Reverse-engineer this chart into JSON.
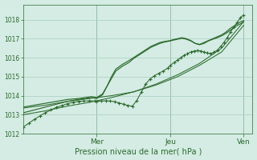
{
  "xlabel": "Pression niveau de la mer( hPa )",
  "bg_color": "#d4ece4",
  "grid_color": "#aacfc0",
  "line_color": "#2d6b2d",
  "ylim": [
    1012,
    1018.8
  ],
  "yticks": [
    1012,
    1013,
    1014,
    1015,
    1016,
    1017,
    1018
  ],
  "xtick_labels": [
    "Mer",
    "Jeu",
    "Ven"
  ],
  "xtick_positions": [
    0.333,
    0.667,
    1.0
  ],
  "vline_positions": [
    0.333,
    0.667,
    1.0
  ],
  "line_straight1_x": [
    0,
    0.1,
    0.2,
    0.3,
    0.4,
    0.5,
    0.6,
    0.7,
    0.8,
    0.9,
    1.0
  ],
  "line_straight1_y": [
    1013.0,
    1013.2,
    1013.45,
    1013.65,
    1013.9,
    1014.2,
    1014.6,
    1015.1,
    1015.7,
    1016.5,
    1017.9
  ],
  "line_straight2_x": [
    0,
    0.1,
    0.2,
    0.3,
    0.4,
    0.5,
    0.6,
    0.7,
    0.8,
    0.9,
    1.0
  ],
  "line_straight2_y": [
    1013.35,
    1013.5,
    1013.7,
    1013.85,
    1014.0,
    1014.2,
    1014.55,
    1015.0,
    1015.6,
    1016.3,
    1017.7
  ],
  "line_wavy1_x": [
    0,
    0.05,
    0.1,
    0.15,
    0.2,
    0.25,
    0.28,
    0.31,
    0.333,
    0.36,
    0.38,
    0.4,
    0.42,
    0.45,
    0.48,
    0.5,
    0.52,
    0.54,
    0.56,
    0.58,
    0.6,
    0.62,
    0.64,
    0.667,
    0.68,
    0.7,
    0.72,
    0.74,
    0.76,
    0.78,
    0.8,
    0.82,
    0.84,
    0.86,
    0.88,
    0.9,
    0.92,
    0.94,
    0.96,
    0.98,
    1.0
  ],
  "line_wavy1_y": [
    1013.1,
    1013.25,
    1013.4,
    1013.55,
    1013.7,
    1013.8,
    1013.85,
    1013.9,
    1013.85,
    1014.05,
    1014.5,
    1015.0,
    1015.4,
    1015.65,
    1015.85,
    1016.0,
    1016.15,
    1016.3,
    1016.45,
    1016.6,
    1016.7,
    1016.8,
    1016.85,
    1016.9,
    1016.95,
    1017.0,
    1017.05,
    1017.0,
    1016.9,
    1016.75,
    1016.7,
    1016.8,
    1016.9,
    1017.0,
    1017.1,
    1017.2,
    1017.35,
    1017.55,
    1017.7,
    1017.85,
    1017.95
  ],
  "line_wavy2_x": [
    0,
    0.05,
    0.1,
    0.15,
    0.2,
    0.25,
    0.28,
    0.31,
    0.333,
    0.36,
    0.38,
    0.4,
    0.42,
    0.45,
    0.48,
    0.5,
    0.52,
    0.54,
    0.56,
    0.58,
    0.6,
    0.62,
    0.64,
    0.667,
    0.68,
    0.7,
    0.72,
    0.74,
    0.76,
    0.78,
    0.8,
    0.82,
    0.84,
    0.86,
    0.88,
    0.9,
    0.92,
    0.94,
    0.96,
    0.98,
    1.0
  ],
  "line_wavy2_y": [
    1013.4,
    1013.5,
    1013.6,
    1013.7,
    1013.8,
    1013.85,
    1013.9,
    1013.95,
    1013.9,
    1014.1,
    1014.5,
    1014.9,
    1015.3,
    1015.55,
    1015.75,
    1015.95,
    1016.1,
    1016.25,
    1016.4,
    1016.55,
    1016.65,
    1016.75,
    1016.82,
    1016.88,
    1016.92,
    1016.97,
    1017.02,
    1016.97,
    1016.88,
    1016.75,
    1016.68,
    1016.75,
    1016.88,
    1016.97,
    1017.05,
    1017.15,
    1017.28,
    1017.45,
    1017.62,
    1017.75,
    1017.88
  ],
  "marker_line_x": [
    0,
    0.025,
    0.05,
    0.075,
    0.1,
    0.125,
    0.15,
    0.175,
    0.2,
    0.225,
    0.25,
    0.275,
    0.3,
    0.325,
    0.333,
    0.355,
    0.375,
    0.395,
    0.415,
    0.435,
    0.455,
    0.475,
    0.495,
    0.515,
    0.535,
    0.555,
    0.575,
    0.595,
    0.615,
    0.635,
    0.655,
    0.667,
    0.685,
    0.7,
    0.715,
    0.73,
    0.745,
    0.76,
    0.775,
    0.79,
    0.805,
    0.82,
    0.835,
    0.85,
    0.865,
    0.88,
    0.895,
    0.91,
    0.925,
    0.94,
    0.955,
    0.97,
    0.985,
    1.0
  ],
  "marker_line_y": [
    1012.35,
    1012.55,
    1012.75,
    1012.93,
    1013.1,
    1013.25,
    1013.38,
    1013.48,
    1013.58,
    1013.65,
    1013.7,
    1013.72,
    1013.73,
    1013.72,
    1013.7,
    1013.72,
    1013.73,
    1013.72,
    1013.68,
    1013.62,
    1013.55,
    1013.48,
    1013.45,
    1013.75,
    1014.18,
    1014.6,
    1014.88,
    1015.05,
    1015.18,
    1015.3,
    1015.45,
    1015.6,
    1015.75,
    1015.88,
    1016.0,
    1016.12,
    1016.22,
    1016.3,
    1016.35,
    1016.38,
    1016.35,
    1016.3,
    1016.25,
    1016.22,
    1016.28,
    1016.4,
    1016.58,
    1016.8,
    1017.05,
    1017.35,
    1017.6,
    1017.85,
    1018.1,
    1018.25
  ]
}
